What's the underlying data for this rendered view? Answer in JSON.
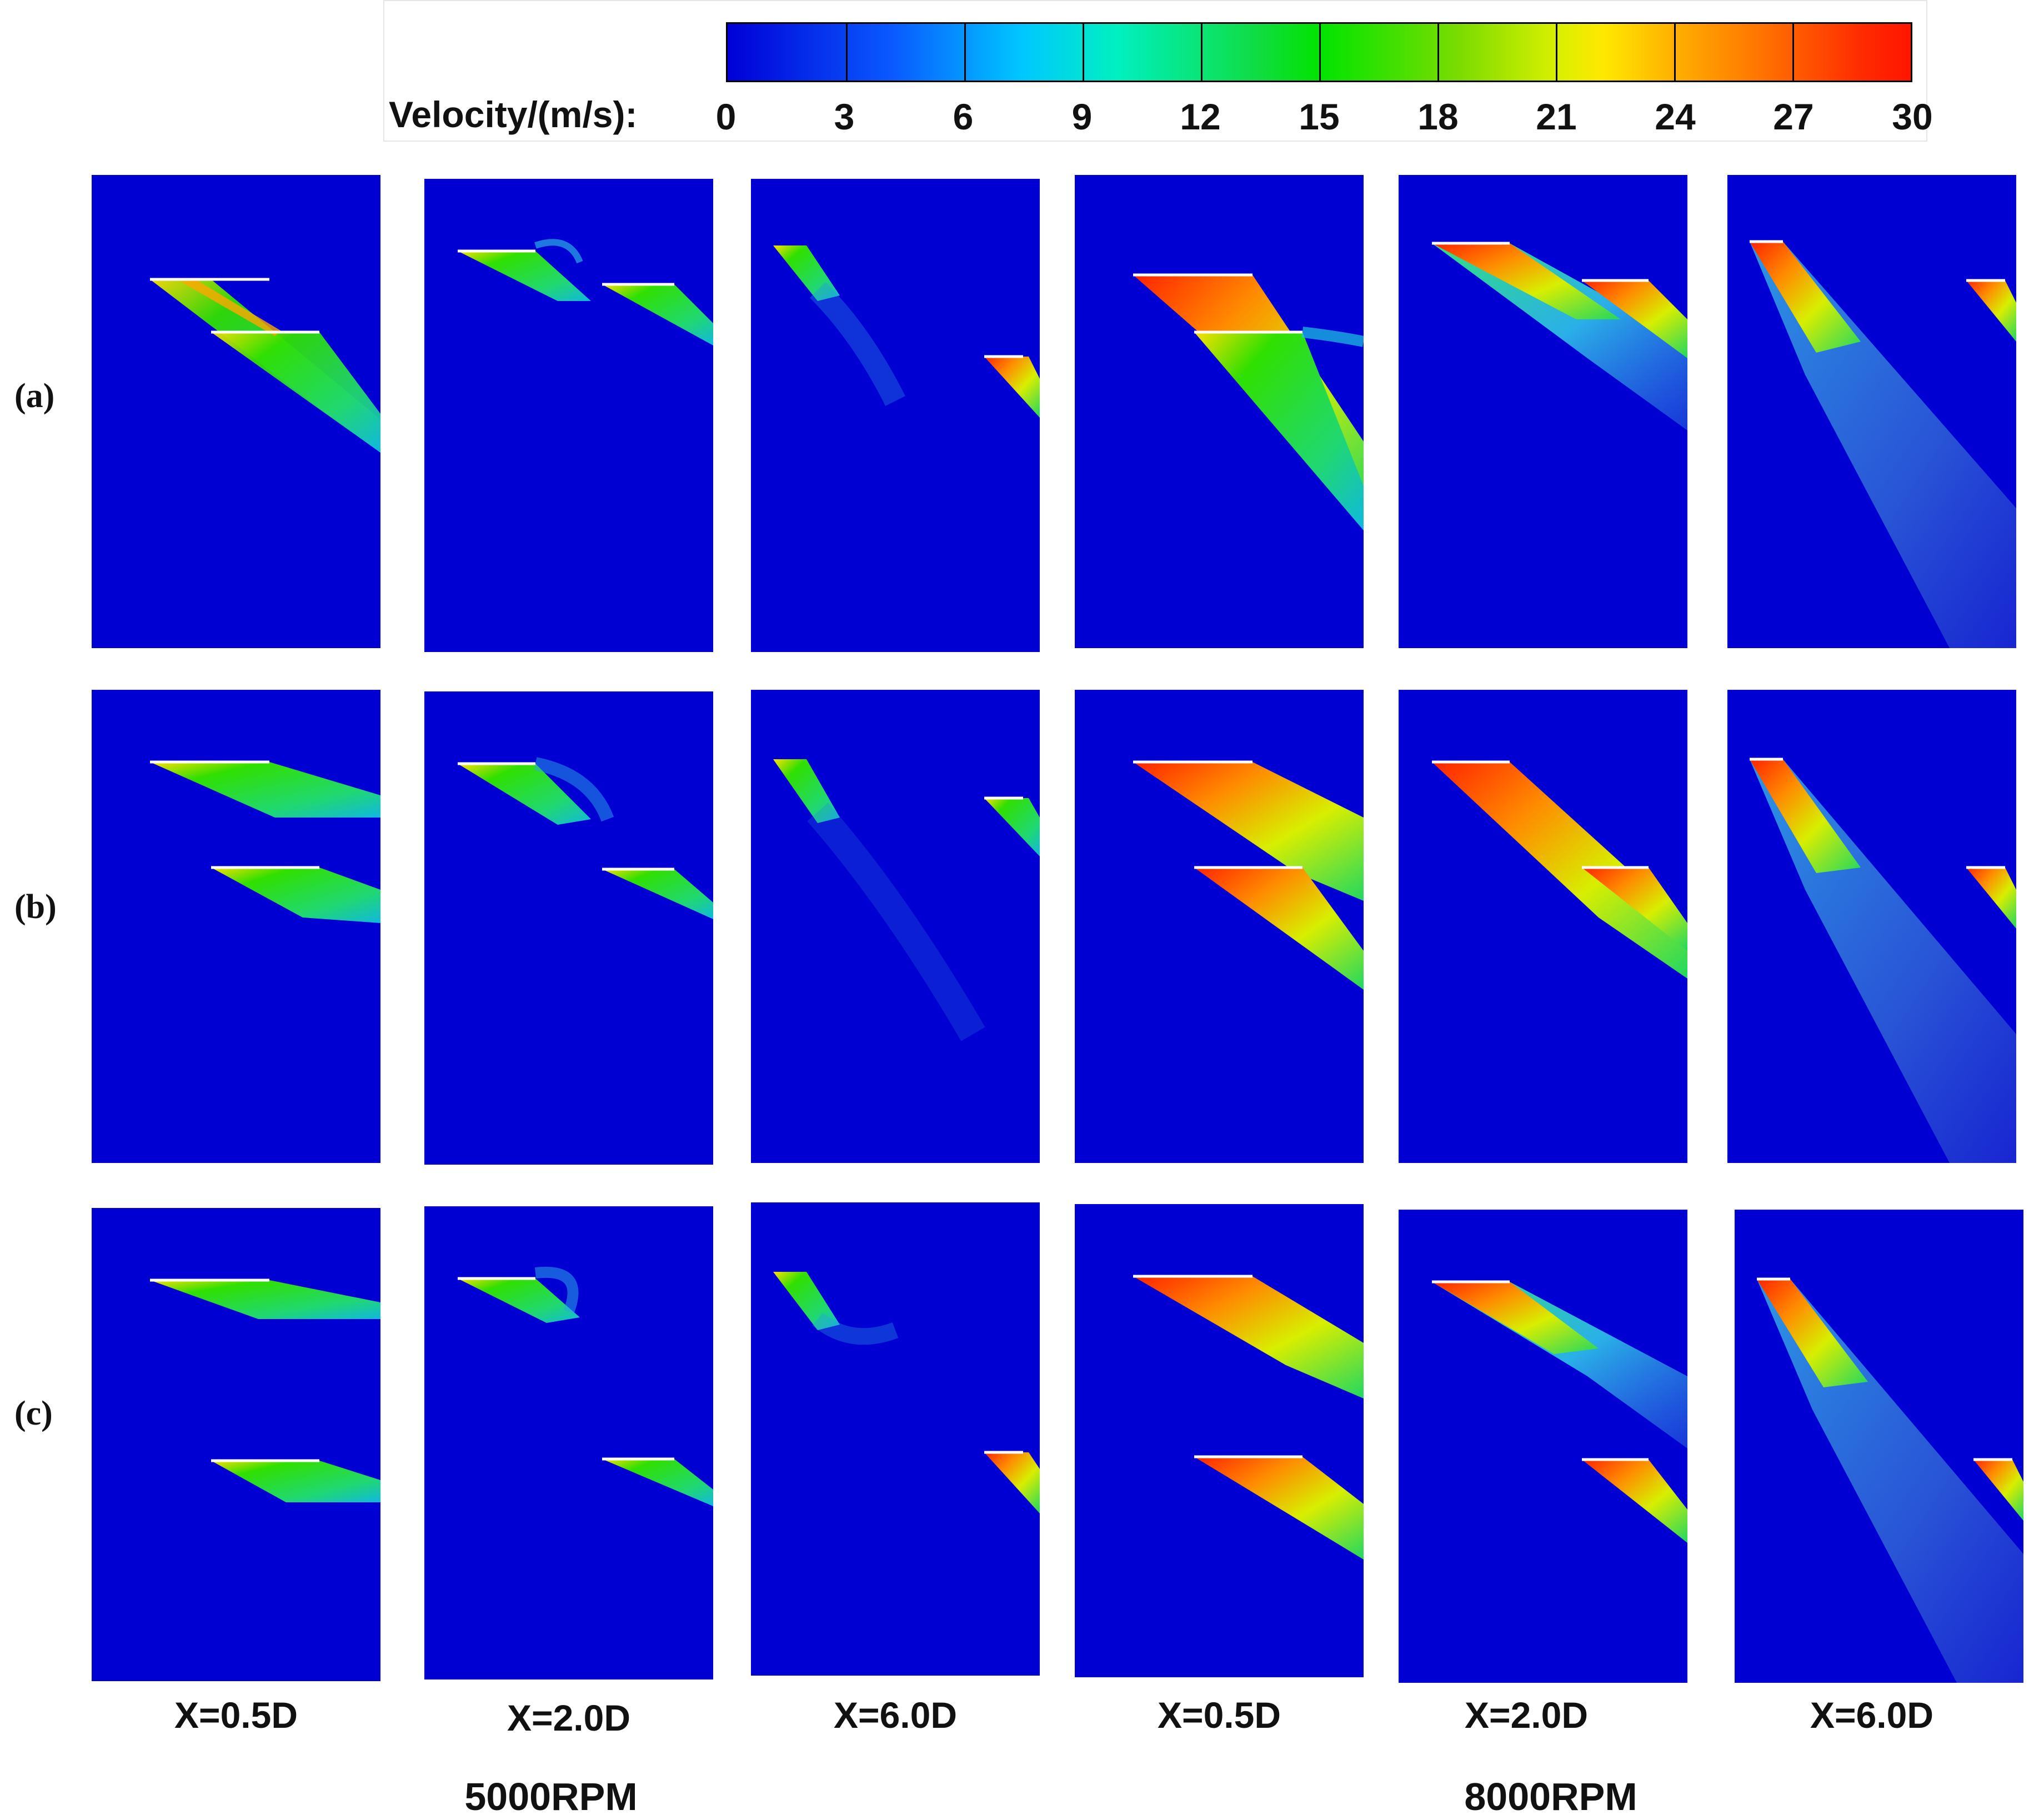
{
  "legend": {
    "label": "Velocity/(m/s):",
    "ticks": [
      "0",
      "3",
      "6",
      "9",
      "12",
      "15",
      "18",
      "21",
      "24",
      "27",
      "30"
    ],
    "range": [
      0,
      30
    ],
    "colors": {
      "min": "#0000d6",
      "mid": "#00e400",
      "max": "#ff1500"
    }
  },
  "rows": [
    {
      "label": "(a)"
    },
    {
      "label": "(b)"
    },
    {
      "label": "(c)"
    }
  ],
  "columns": [
    {
      "label": "X=0.5D"
    },
    {
      "label": "X=2.0D"
    },
    {
      "label": "X=6.0D"
    },
    {
      "label": "X=0.5D"
    },
    {
      "label": "X=2.0D"
    },
    {
      "label": "X=6.0D"
    }
  ],
  "groups": [
    {
      "label": "5000RPM"
    },
    {
      "label": "8000RPM"
    }
  ]
}
